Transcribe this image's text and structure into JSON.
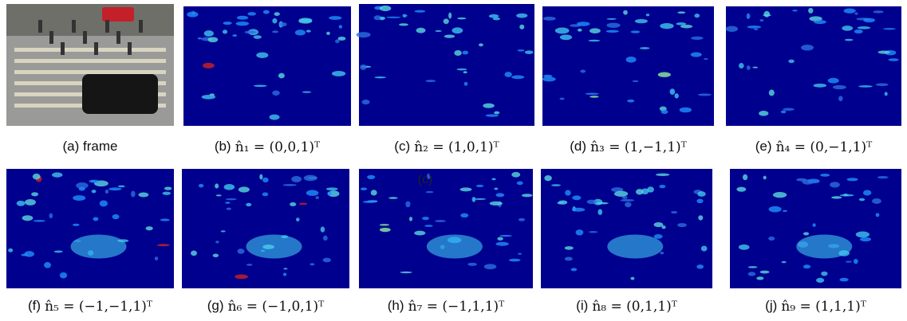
{
  "panels": [
    {
      "label": "(a) frame",
      "formula": null
    },
    {
      "label": "(b)",
      "formula": "n̂₁ = (0,0,1)ᵀ"
    },
    {
      "label": "(c)",
      "formula": "n̂₂ = (1,0,1)ᵀ"
    },
    {
      "label": "(d)",
      "formula": "n̂₃ = (1,−1,1)ᵀ"
    },
    {
      "label": "(e)",
      "formula": "n̂₄ = (0,−1,1)ᵀ"
    },
    {
      "label": "(f)",
      "formula": "n̂₅ = (−1,−1,1)ᵀ"
    },
    {
      "label": "(g)",
      "formula": "n̂₆ = (−1,0,1)ᵀ"
    },
    {
      "label": "(h)",
      "formula": "n̂₇ = (−1,1,1)ᵀ"
    },
    {
      "label": "(i)",
      "formula": "n̂₈ = (0,1,1)ᵀ"
    },
    {
      "label": "(j)",
      "formula": "n̂₉ = (1,1,1)ᵀ"
    }
  ],
  "annotation": "(c)"
}
